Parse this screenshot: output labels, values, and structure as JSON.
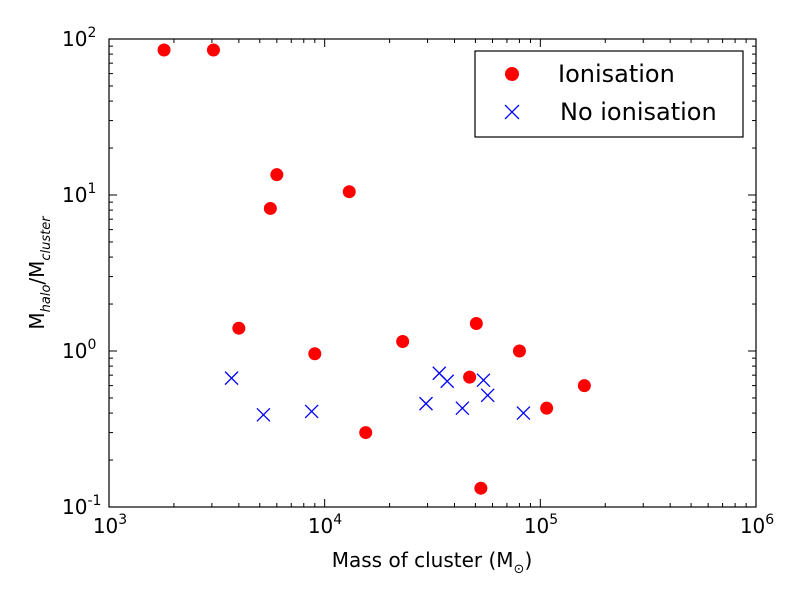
{
  "chart_data": {
    "type": "scatter",
    "xscale": "log",
    "yscale": "log",
    "xlim": [
      1000,
      1000000
    ],
    "ylim": [
      0.1,
      100
    ],
    "xlabel": {
      "main": "Mass of cluster (M",
      "sub": "⊙",
      "end": ")"
    },
    "ylabel": {
      "m1": "M",
      "sub1": "halo",
      "slash": "/M",
      "sub2": "cluster"
    },
    "ticks_x": [
      {
        "value": 1000,
        "base": "10",
        "exp": "3"
      },
      {
        "value": 10000,
        "base": "10",
        "exp": "4"
      },
      {
        "value": 100000,
        "base": "10",
        "exp": "5"
      },
      {
        "value": 1000000,
        "base": "10",
        "exp": "6"
      }
    ],
    "ticks_y": [
      {
        "value": 0.1,
        "base": "10",
        "exp": "-1"
      },
      {
        "value": 1,
        "base": "10",
        "exp": "0"
      },
      {
        "value": 10,
        "base": "10",
        "exp": "1"
      },
      {
        "value": 100,
        "base": "10",
        "exp": "2"
      }
    ],
    "legend_position": "top-right",
    "series": [
      {
        "name": "Ionisation",
        "marker": "circle",
        "color": "#ff0000",
        "points": [
          {
            "x": 1800,
            "y": 85
          },
          {
            "x": 3050,
            "y": 85
          },
          {
            "x": 4000,
            "y": 1.4
          },
          {
            "x": 5600,
            "y": 8.2
          },
          {
            "x": 6000,
            "y": 13.5
          },
          {
            "x": 9000,
            "y": 0.96
          },
          {
            "x": 13000,
            "y": 10.5
          },
          {
            "x": 15500,
            "y": 0.3
          },
          {
            "x": 23000,
            "y": 1.15
          },
          {
            "x": 47000,
            "y": 0.68
          },
          {
            "x": 50500,
            "y": 1.5
          },
          {
            "x": 53000,
            "y": 0.132
          },
          {
            "x": 80000,
            "y": 1.0
          },
          {
            "x": 107000,
            "y": 0.43
          },
          {
            "x": 160000,
            "y": 0.6
          }
        ]
      },
      {
        "name": "No ionisation",
        "marker": "x",
        "color": "#0000ff",
        "points": [
          {
            "x": 3700,
            "y": 0.67
          },
          {
            "x": 5200,
            "y": 0.39
          },
          {
            "x": 8700,
            "y": 0.41
          },
          {
            "x": 29500,
            "y": 0.46
          },
          {
            "x": 34000,
            "y": 0.72
          },
          {
            "x": 37000,
            "y": 0.64
          },
          {
            "x": 43500,
            "y": 0.43
          },
          {
            "x": 54500,
            "y": 0.65
          },
          {
            "x": 57000,
            "y": 0.52
          },
          {
            "x": 83500,
            "y": 0.4
          }
        ]
      }
    ]
  }
}
